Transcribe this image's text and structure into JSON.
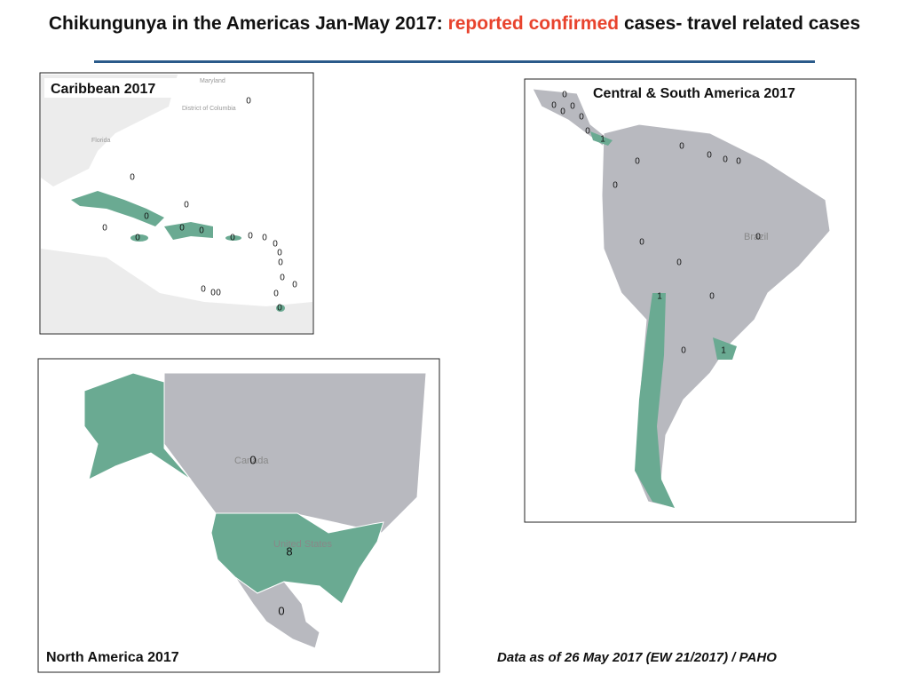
{
  "title": {
    "part1": "Chikungunya in the Americas Jan-May 2017:",
    "highlight": "reported confirmed",
    "part2": "cases- travel related cases"
  },
  "maps": {
    "caribbean": {
      "title": "Caribbean 2017",
      "place_labels": [
        "Maryland",
        "District of Columbia",
        "Florida"
      ],
      "counts": [
        0,
        0,
        0,
        0,
        0,
        0,
        0,
        0,
        0,
        0,
        0,
        0,
        0,
        0,
        0,
        0,
        0,
        0,
        0,
        0,
        0
      ]
    },
    "central_south": {
      "title": "Central & South America  2017",
      "place_labels": [
        "Brazil"
      ],
      "counts": [
        0,
        0,
        0,
        0,
        0,
        0,
        1,
        0,
        0,
        0,
        0,
        0,
        0,
        0,
        0,
        0,
        1,
        0,
        0,
        1
      ]
    },
    "north_america": {
      "title": "North America  2017",
      "place_labels": [
        "Canada",
        "United States"
      ],
      "counts": [
        0,
        8,
        0
      ]
    }
  },
  "footer": "Data as of 26 May 2017 (EW 21/2017) / PAHO"
}
